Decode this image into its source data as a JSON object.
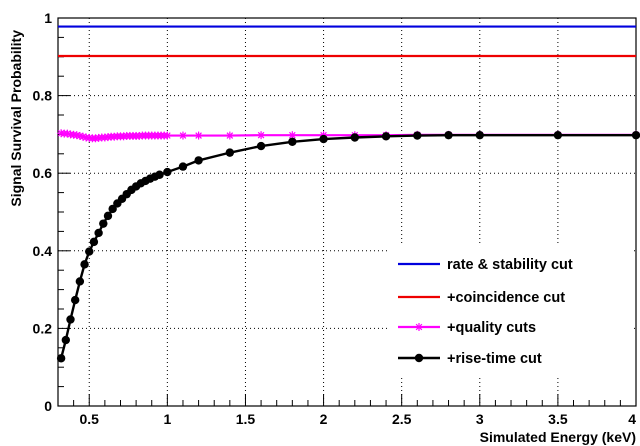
{
  "chart_data": {
    "type": "line",
    "xlabel": "Simulated Energy (keV)",
    "ylabel": "Signal Survival Probability",
    "xlim": [
      0.3,
      4.0
    ],
    "ylim": [
      0,
      1.0
    ],
    "xticks": [
      0.5,
      1,
      1.5,
      2,
      2.5,
      3,
      3.5,
      4
    ],
    "xtick_labels": [
      "0.5",
      "1",
      "1.5",
      "2",
      "2.5",
      "3",
      "3.5",
      "4"
    ],
    "yticks": [
      0,
      0.2,
      0.4,
      0.6,
      0.8,
      1
    ],
    "ytick_labels": [
      "0",
      "0.2",
      "0.4",
      "0.6",
      "0.8",
      "1"
    ],
    "grid": true,
    "legend_position": "bottom-right",
    "series": [
      {
        "name": "rate & stability cut",
        "color": "#0000dd",
        "marker": "none",
        "x": [
          0.3,
          4.0
        ],
        "y": [
          0.978,
          0.978
        ]
      },
      {
        "name": "+coincidence cut",
        "color": "#ee0000",
        "marker": "none",
        "x": [
          0.3,
          4.0
        ],
        "y": [
          0.902,
          0.902
        ]
      },
      {
        "name": "+quality cuts",
        "color": "#ff00ff",
        "marker": "star",
        "x": [
          0.32,
          0.34,
          0.36,
          0.38,
          0.4,
          0.42,
          0.44,
          0.46,
          0.48,
          0.5,
          0.52,
          0.54,
          0.56,
          0.58,
          0.6,
          0.62,
          0.64,
          0.66,
          0.68,
          0.7,
          0.72,
          0.74,
          0.76,
          0.78,
          0.8,
          0.82,
          0.84,
          0.86,
          0.88,
          0.9,
          0.92,
          0.94,
          0.96,
          0.98,
          1.0,
          1.1,
          1.2,
          1.4,
          1.6,
          1.8,
          2.0,
          2.2,
          2.4,
          2.6,
          2.8,
          3.0,
          3.5,
          4.0
        ],
        "y": [
          0.703,
          0.702,
          0.702,
          0.7,
          0.699,
          0.698,
          0.696,
          0.694,
          0.692,
          0.691,
          0.69,
          0.69,
          0.691,
          0.692,
          0.692,
          0.693,
          0.694,
          0.694,
          0.695,
          0.695,
          0.695,
          0.696,
          0.696,
          0.696,
          0.696,
          0.696,
          0.697,
          0.697,
          0.697,
          0.697,
          0.697,
          0.697,
          0.697,
          0.697,
          0.697,
          0.697,
          0.697,
          0.697,
          0.698,
          0.698,
          0.698,
          0.698,
          0.698,
          0.699,
          0.699,
          0.699,
          0.699,
          0.699
        ]
      },
      {
        "name": "+rise-time cut",
        "color": "#000000",
        "marker": "circle",
        "x": [
          0.32,
          0.35,
          0.38,
          0.41,
          0.44,
          0.47,
          0.5,
          0.53,
          0.56,
          0.59,
          0.62,
          0.65,
          0.68,
          0.71,
          0.74,
          0.77,
          0.8,
          0.83,
          0.86,
          0.89,
          0.92,
          0.95,
          1.0,
          1.1,
          1.2,
          1.4,
          1.6,
          1.8,
          2.0,
          2.2,
          2.4,
          2.6,
          2.8,
          3.0,
          3.5,
          4.0
        ],
        "y": [
          0.123,
          0.17,
          0.223,
          0.273,
          0.321,
          0.365,
          0.398,
          0.423,
          0.446,
          0.47,
          0.49,
          0.508,
          0.522,
          0.534,
          0.546,
          0.557,
          0.566,
          0.574,
          0.58,
          0.586,
          0.591,
          0.596,
          0.603,
          0.617,
          0.633,
          0.653,
          0.67,
          0.681,
          0.688,
          0.692,
          0.695,
          0.697,
          0.698,
          0.698,
          0.698,
          0.698
        ]
      }
    ]
  }
}
